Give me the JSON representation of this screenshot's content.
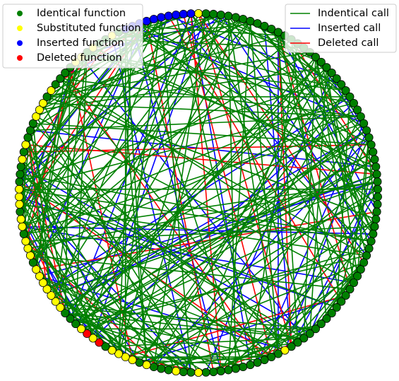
{
  "legend_nodes": [
    {
      "label": "Identical function",
      "color": "#008000"
    },
    {
      "label": "Substituted function",
      "color": "#ffff00"
    },
    {
      "label": "Inserted function",
      "color": "#0000ff"
    },
    {
      "label": "Deleted function",
      "color": "#ff0000"
    }
  ],
  "legend_edges": [
    {
      "label": "Indentical call",
      "color": "#008000"
    },
    {
      "label": "Inserted call",
      "color": "#0000ff"
    },
    {
      "label": "Deleted call",
      "color": "#ff0000"
    }
  ]
}
